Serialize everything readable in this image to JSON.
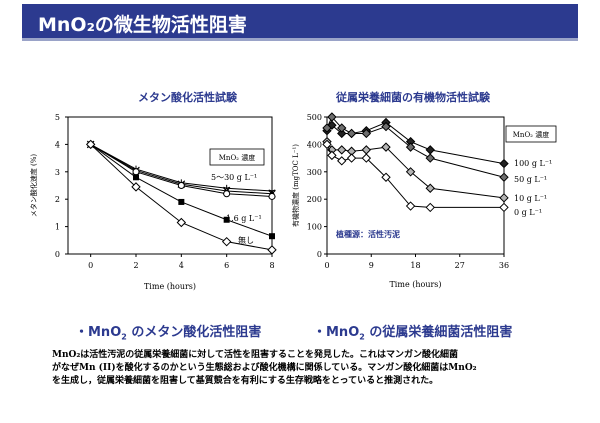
{
  "slide": {
    "title": "MnO₂の微生物活性阻害"
  },
  "chart_titles": {
    "left": "メタン酸化活性試験",
    "right": "従属栄養細菌の有機物活性試験"
  },
  "bullets": {
    "left_prefix": "・MnO",
    "left_sub": "2",
    "left_suffix": " のメタン酸化活性阻害",
    "right_prefix": "・MnO",
    "right_sub": "2",
    "right_suffix": " の従属栄養細菌活性阻害"
  },
  "body": {
    "line1": "MnO₂は活性汚泥の従属栄養細菌に対して活性を阻害することを発見した。これはマンガン酸化細菌",
    "line2": "がなぜMn (II)を酸化するのかという生態総および酸化機構に関係している。マンガン酸化細菌はMnO₂",
    "line3": "を生成し，従属栄養細菌を阻害して基質競合を有利にする生存戦略をとっていると推測された。"
  },
  "chart_data": [
    {
      "type": "line",
      "xlabel": "Time (hours)",
      "ylabel": "メタン酸化速度 (%)",
      "xlim": [
        -1,
        8
      ],
      "ylim": [
        0,
        5
      ],
      "xticks": [
        0,
        2,
        4,
        6,
        8
      ],
      "yticks": [
        0,
        1,
        2,
        3,
        4,
        5
      ],
      "legend_title": "MnO₂ 濃度",
      "series": [
        {
          "name": "5〜30 g L⁻¹",
          "marker": "star",
          "x": [
            0,
            2,
            4,
            6,
            8
          ],
          "y": [
            4.0,
            3.1,
            2.6,
            2.4,
            2.3
          ]
        },
        {
          "name": "",
          "marker": "cross",
          "x": [
            0,
            2,
            4,
            6,
            8
          ],
          "y": [
            4.0,
            3.05,
            2.55,
            2.3,
            2.2
          ]
        },
        {
          "name": "",
          "marker": "circle",
          "x": [
            0,
            2,
            4,
            6,
            8
          ],
          "y": [
            4.0,
            3.0,
            2.5,
            2.2,
            2.1
          ]
        },
        {
          "name": "1.6 g L⁻¹",
          "marker": "square",
          "x": [
            0,
            2,
            4,
            6,
            8
          ],
          "y": [
            4.0,
            2.8,
            1.9,
            1.25,
            0.65
          ]
        },
        {
          "name": "無し",
          "marker": "diamond",
          "x": [
            0,
            2,
            4,
            6,
            8
          ],
          "y": [
            4.0,
            2.45,
            1.15,
            0.45,
            0.15
          ]
        }
      ]
    },
    {
      "type": "line",
      "xlabel": "Time (hours)",
      "ylabel": "有機物濃度 (mgTOC L⁻¹)",
      "xlim": [
        0,
        36
      ],
      "ylim": [
        0,
        500
      ],
      "xticks": [
        0,
        9,
        18,
        27,
        36
      ],
      "yticks": [
        0,
        100,
        200,
        300,
        400,
        500
      ],
      "legend_title": "MnO₂ 濃度",
      "annotation": "植種源：活性汚泥",
      "series": [
        {
          "name": "100 g L⁻¹",
          "fill": "#222222",
          "x": [
            0,
            1,
            3,
            5,
            8,
            12,
            17,
            21,
            36
          ],
          "y": [
            450,
            470,
            440,
            440,
            450,
            480,
            410,
            380,
            330
          ]
        },
        {
          "name": "50 g L⁻¹",
          "fill": "#6e6e6e",
          "x": [
            0,
            1,
            3,
            5,
            8,
            12,
            17,
            21,
            36
          ],
          "y": [
            460,
            500,
            460,
            440,
            440,
            465,
            390,
            350,
            280
          ]
        },
        {
          "name": "10 g L⁻¹",
          "fill": "#b4b4b4",
          "x": [
            0,
            1,
            3,
            5,
            8,
            12,
            17,
            21,
            36
          ],
          "y": [
            410,
            380,
            380,
            375,
            380,
            390,
            300,
            240,
            205
          ]
        },
        {
          "name": "0 g L⁻¹",
          "fill": "#ffffff",
          "x": [
            0,
            1,
            3,
            5,
            8,
            12,
            17,
            21,
            36
          ],
          "y": [
            400,
            360,
            340,
            350,
            350,
            280,
            175,
            170,
            170
          ]
        }
      ]
    }
  ]
}
